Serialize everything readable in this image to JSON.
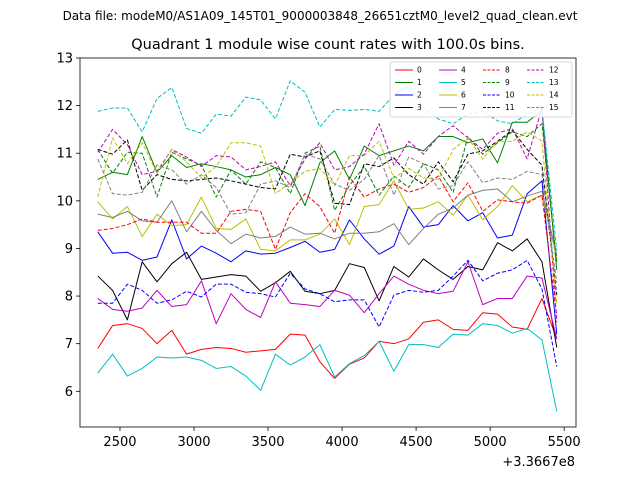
{
  "suptitle": "Data file: modeM0/AS1A09_145T01_9000003848_26651cztM0_level2_quad_clean.evt",
  "chart_data": {
    "type": "line",
    "title": "Quadrant 1 module wise count rates with 100.0s bins.",
    "xlabel": "",
    "ylabel": "",
    "x_offset_label": "+3.3667e8",
    "xlim": [
      2230,
      5580
    ],
    "ylim": [
      5.25,
      13.0
    ],
    "xticks": [
      2500,
      3000,
      3500,
      4000,
      4500,
      5000,
      5500
    ],
    "yticks": [
      6,
      7,
      8,
      9,
      10,
      11,
      12,
      13
    ],
    "legend_position": "top-right",
    "x": [
      2350,
      2450,
      2550,
      2650,
      2750,
      2850,
      2950,
      3050,
      3150,
      3250,
      3350,
      3450,
      3550,
      3650,
      3750,
      3850,
      3950,
      4050,
      4150,
      4250,
      4350,
      4450,
      4550,
      4650,
      4750,
      4850,
      4950,
      5050,
      5150,
      5250,
      5350,
      5450
    ],
    "series": [
      {
        "name": "0",
        "color": "#ff0000",
        "dash": "solid",
        "values": [
          6.9,
          7.38,
          7.42,
          7.32,
          7.0,
          7.28,
          6.78,
          6.88,
          6.92,
          6.9,
          6.82,
          6.85,
          6.88,
          7.2,
          7.18,
          6.62,
          6.27,
          6.57,
          6.7,
          7.05,
          7.0,
          7.1,
          7.45,
          7.5,
          7.3,
          7.28,
          7.65,
          7.62,
          7.35,
          7.3,
          7.95,
          7.1
        ]
      },
      {
        "name": "1",
        "color": "#008000",
        "dash": "solid",
        "values": [
          10.45,
          10.6,
          10.55,
          11.35,
          10.6,
          10.95,
          10.7,
          10.78,
          10.72,
          10.65,
          10.5,
          10.55,
          10.7,
          10.55,
          9.9,
          10.8,
          11.05,
          10.45,
          11.15,
          10.95,
          11.05,
          11.15,
          11.05,
          11.35,
          11.35,
          11.22,
          11.3,
          10.8,
          11.65,
          11.65,
          11.9,
          8.55
        ]
      },
      {
        "name": "2",
        "color": "#0000ff",
        "dash": "solid",
        "values": [
          9.35,
          8.9,
          8.92,
          8.75,
          8.82,
          9.6,
          8.78,
          9.05,
          8.9,
          8.72,
          8.95,
          8.88,
          8.9,
          9.02,
          9.15,
          8.92,
          8.98,
          9.6,
          9.2,
          8.88,
          9.05,
          9.88,
          9.45,
          9.5,
          9.9,
          9.58,
          9.75,
          9.22,
          9.28,
          10.15,
          10.42,
          7.2
        ]
      },
      {
        "name": "3",
        "color": "#000000",
        "dash": "solid",
        "values": [
          8.42,
          8.12,
          7.5,
          8.72,
          8.3,
          8.68,
          8.92,
          8.35,
          8.4,
          8.45,
          8.42,
          8.1,
          8.28,
          8.52,
          8.1,
          8.05,
          8.12,
          8.68,
          8.6,
          7.9,
          8.62,
          8.4,
          8.78,
          8.55,
          8.35,
          8.62,
          8.55,
          9.12,
          8.95,
          9.2,
          8.72,
          6.92
        ]
      },
      {
        "name": "4",
        "color": "#bf00bf",
        "dash": "solid",
        "values": [
          7.95,
          7.72,
          7.68,
          7.75,
          8.12,
          7.78,
          7.82,
          8.32,
          7.42,
          8.05,
          7.72,
          7.55,
          8.3,
          7.85,
          7.82,
          7.78,
          8.12,
          8.02,
          7.65,
          8.05,
          8.42,
          8.25,
          8.12,
          8.05,
          8.1,
          8.72,
          7.82,
          7.95,
          7.95,
          8.42,
          8.38,
          7.1
        ]
      },
      {
        "name": "5",
        "color": "#00bfbf",
        "dash": "solid",
        "values": [
          6.38,
          6.78,
          6.32,
          6.48,
          6.72,
          6.7,
          6.72,
          6.65,
          6.48,
          6.52,
          6.32,
          6.02,
          6.78,
          6.55,
          6.72,
          6.98,
          6.3,
          6.58,
          6.75,
          7.05,
          6.42,
          6.98,
          6.98,
          6.92,
          7.2,
          7.18,
          7.42,
          7.38,
          7.22,
          7.32,
          7.08,
          5.58
        ]
      },
      {
        "name": "6",
        "color": "#bfbf00",
        "dash": "solid",
        "values": [
          9.98,
          9.62,
          9.88,
          9.25,
          9.72,
          9.48,
          9.5,
          10.08,
          9.42,
          9.4,
          9.62,
          8.98,
          8.95,
          9.18,
          9.18,
          9.3,
          9.62,
          9.08,
          9.88,
          9.92,
          10.42,
          9.82,
          9.85,
          9.98,
          9.7,
          10.12,
          9.6,
          9.88,
          10.32,
          9.98,
          10.12,
          8.8
        ]
      },
      {
        "name": "7",
        "color": "#808080",
        "dash": "solid",
        "values": [
          9.72,
          9.65,
          9.78,
          9.58,
          9.55,
          10.0,
          9.35,
          9.78,
          9.38,
          9.1,
          9.3,
          9.22,
          9.25,
          9.45,
          9.3,
          9.32,
          9.2,
          9.32,
          9.32,
          9.35,
          9.52,
          9.08,
          9.42,
          9.72,
          9.85,
          10.12,
          10.22,
          10.25,
          9.98,
          10.1,
          10.2,
          8.85
        ]
      },
      {
        "name": "8",
        "color": "#ff0000",
        "dash": "dashed",
        "values": [
          9.38,
          9.42,
          9.5,
          9.62,
          9.55,
          9.55,
          9.55,
          9.32,
          9.32,
          9.78,
          9.82,
          9.78,
          8.98,
          9.75,
          10.15,
          9.88,
          9.32,
          10.5,
          10.08,
          10.25,
          10.35,
          10.18,
          10.28,
          10.52,
          9.98,
          10.38,
          9.78,
          10.02,
          9.98,
          9.95,
          10.12,
          7.58
        ]
      },
      {
        "name": "9",
        "color": "#008000",
        "dash": "dashed",
        "values": [
          11.08,
          10.58,
          11.02,
          11.0,
          10.08,
          11.02,
          10.88,
          10.75,
          10.08,
          10.65,
          10.35,
          10.82,
          10.7,
          10.15,
          11.0,
          11.15,
          9.8,
          10.32,
          10.72,
          10.12,
          10.52,
          10.28,
          10.78,
          10.65,
          10.18,
          11.35,
          10.98,
          11.22,
          11.45,
          11.35,
          11.62,
          8.7
        ]
      },
      {
        "name": "10",
        "color": "#0000ff",
        "dash": "dashed",
        "values": [
          7.85,
          7.85,
          8.25,
          8.12,
          7.85,
          7.92,
          8.1,
          7.98,
          8.25,
          8.25,
          8.08,
          8.05,
          7.98,
          8.48,
          8.15,
          8.05,
          7.88,
          7.92,
          7.92,
          7.35,
          8.02,
          8.12,
          8.08,
          8.12,
          8.42,
          8.75,
          8.32,
          8.48,
          8.55,
          8.75,
          8.15,
          6.52
        ]
      },
      {
        "name": "11",
        "color": "#000000",
        "dash": "dashed",
        "values": [
          11.08,
          10.98,
          11.28,
          10.22,
          10.55,
          10.45,
          10.42,
          10.45,
          10.48,
          10.42,
          10.35,
          10.28,
          10.25,
          10.98,
          10.92,
          11.05,
          9.95,
          9.92,
          10.78,
          10.72,
          10.9,
          10.55,
          10.35,
          10.82,
          10.4,
          10.98,
          11.05,
          11.25,
          11.48,
          11.08,
          10.75,
          8.02
        ]
      },
      {
        "name": "12",
        "color": "#bf00bf",
        "dash": "dashed",
        "values": [
          11.02,
          11.5,
          11.18,
          10.55,
          10.62,
          11.08,
          10.92,
          10.72,
          10.95,
          10.92,
          10.65,
          10.72,
          10.82,
          10.32,
          10.88,
          11.22,
          10.65,
          10.72,
          10.98,
          11.62,
          10.75,
          11.25,
          10.98,
          11.35,
          11.58,
          11.32,
          11.08,
          11.42,
          11.52,
          10.88,
          11.95,
          7.45
        ]
      },
      {
        "name": "13",
        "color": "#00bfbf",
        "dash": "dashed",
        "values": [
          11.88,
          11.95,
          11.95,
          11.45,
          12.15,
          12.38,
          11.52,
          11.42,
          11.82,
          11.78,
          12.18,
          12.12,
          11.72,
          12.52,
          12.28,
          11.55,
          11.92,
          11.9,
          11.92,
          11.88,
          12.22,
          12.42,
          11.95,
          11.72,
          11.62,
          11.82,
          11.88,
          11.68,
          11.62,
          11.82,
          11.95,
          8.95
        ]
      },
      {
        "name": "14",
        "color": "#bfbf00",
        "dash": "dashed",
        "values": [
          10.08,
          11.32,
          10.78,
          11.22,
          10.58,
          11.08,
          10.82,
          10.48,
          10.72,
          11.22,
          11.22,
          11.15,
          10.15,
          10.38,
          10.62,
          10.68,
          10.32,
          10.95,
          10.95,
          11.25,
          10.48,
          10.68,
          10.48,
          10.45,
          11.08,
          11.32,
          10.88,
          11.25,
          11.25,
          11.45,
          11.25,
          7.82
        ]
      },
      {
        "name": "15",
        "color": "#808080",
        "dash": "dashed",
        "values": [
          10.88,
          10.15,
          10.12,
          10.18,
          10.75,
          10.65,
          10.35,
          10.55,
          10.28,
          9.72,
          9.75,
          10.35,
          10.42,
          10.28,
          10.98,
          10.88,
          10.35,
          10.22,
          10.45,
          10.95,
          10.12,
          10.92,
          10.78,
          10.25,
          10.32,
          10.82,
          10.38,
          10.48,
          10.45,
          10.62,
          10.55,
          8.28
        ]
      }
    ]
  }
}
